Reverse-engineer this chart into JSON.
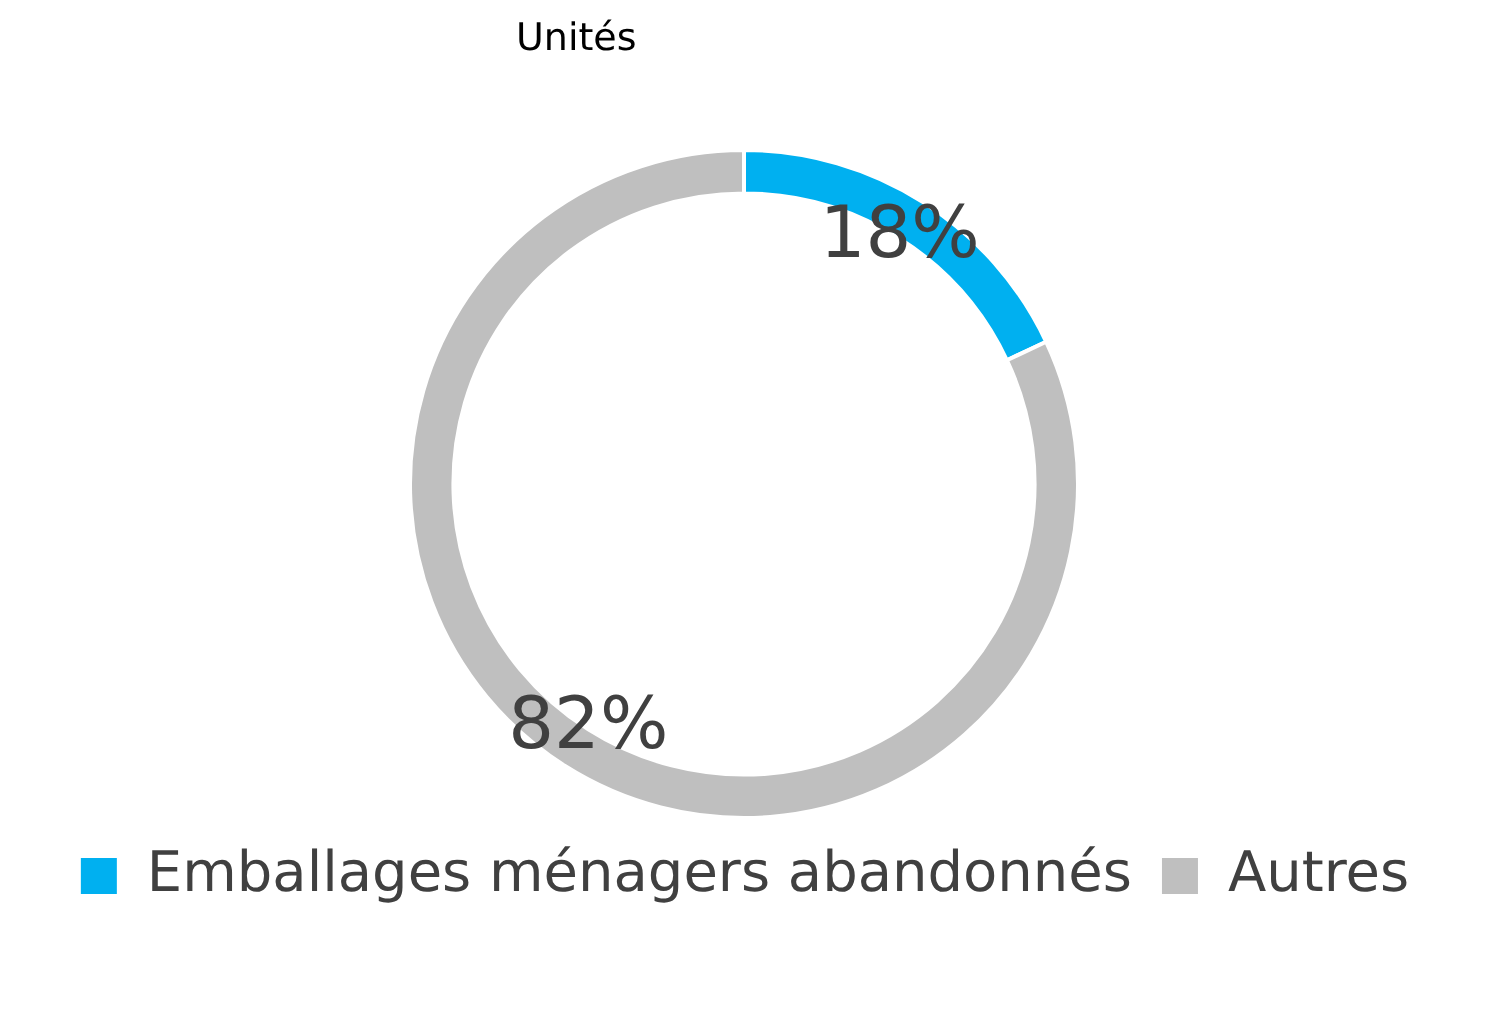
{
  "chart_data": {
    "type": "donut",
    "title": "Unités",
    "categories": [
      "Emballages ménagers abandonnés",
      "Autres"
    ],
    "values": [
      18,
      82
    ],
    "colors": [
      "#00b0f0",
      "#bfbfbf"
    ],
    "value_labels": [
      "18%",
      "82%"
    ],
    "legend": "bottom"
  }
}
